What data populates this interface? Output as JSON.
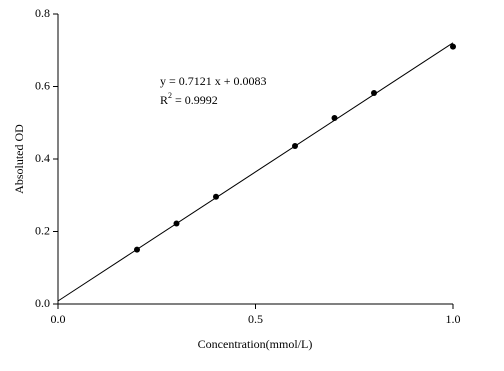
{
  "chart_data": {
    "type": "scatter",
    "xlabel": "Concentration(mmol/L)",
    "ylabel": "Absoluted OD",
    "x": [
      0.2,
      0.3,
      0.4,
      0.6,
      0.7,
      0.8,
      1.0
    ],
    "values": [
      0.15,
      0.222,
      0.296,
      0.436,
      0.513,
      0.582,
      0.71
    ],
    "color": "#000000",
    "fit": {
      "slope": 0.7121,
      "intercept": 0.0083
    },
    "equation": "y = 0.7121 x + 0.0083",
    "r2": {
      "base": "R",
      "sup": "2",
      "rest": " = 0.9992"
    },
    "xlim": [
      0,
      1
    ],
    "ylim": [
      0,
      0.8
    ],
    "xticks": [
      {
        "value": 0,
        "label": "0.0"
      },
      0.5,
      {
        "value": 1,
        "label": "1.0"
      }
    ],
    "yticks": [
      {
        "value": 0,
        "label": "0.0"
      },
      0.2,
      0.4,
      0.6,
      0.8
    ]
  }
}
